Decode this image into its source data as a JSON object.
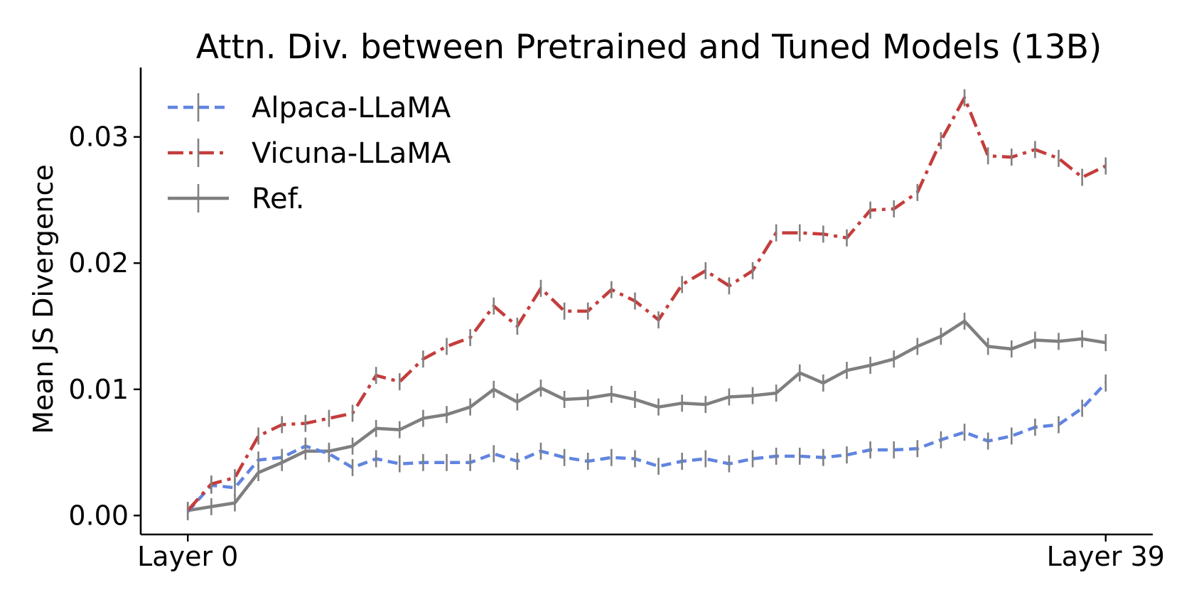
{
  "chart_data": {
    "type": "line",
    "title": "Attn. Div. between Pretrained and Tuned Models (13B)",
    "xlabel": "",
    "ylabel": "Mean JS Divergence",
    "x_ticks": [
      {
        "x": 0,
        "label": "Layer 0"
      },
      {
        "x": 39,
        "label": "Layer 39"
      }
    ],
    "y_ticks": [
      "0.00",
      "0.01",
      "0.02",
      "0.03"
    ],
    "xlim": [
      -2,
      41
    ],
    "ylim": [
      -0.0015,
      0.0355
    ],
    "grid": false,
    "legend_position": "top-left",
    "x": [
      0,
      1,
      2,
      3,
      4,
      5,
      6,
      7,
      8,
      9,
      10,
      11,
      12,
      13,
      14,
      15,
      16,
      17,
      18,
      19,
      20,
      21,
      22,
      23,
      24,
      25,
      26,
      27,
      28,
      29,
      30,
      31,
      32,
      33,
      34,
      35,
      36,
      37,
      38,
      39
    ],
    "series": [
      {
        "name": "Alpaca-LLaMA",
        "color": "#6184e0",
        "style": "dashed",
        "values": [
          0.0003,
          0.0024,
          0.0022,
          0.0044,
          0.0046,
          0.0055,
          0.0049,
          0.0038,
          0.0045,
          0.0041,
          0.0042,
          0.0042,
          0.0042,
          0.0049,
          0.0043,
          0.0051,
          0.0046,
          0.0043,
          0.0046,
          0.0045,
          0.0039,
          0.0043,
          0.0045,
          0.0041,
          0.0045,
          0.0047,
          0.0047,
          0.0046,
          0.0048,
          0.0052,
          0.0052,
          0.0053,
          0.006,
          0.0066,
          0.0059,
          0.0063,
          0.007,
          0.0072,
          0.0085,
          0.0105
        ]
      },
      {
        "name": "Vicuna-LLaMA",
        "color": "#c43d3c",
        "style": "dashdot",
        "values": [
          0.0004,
          0.0025,
          0.003,
          0.0063,
          0.0072,
          0.0073,
          0.0077,
          0.0081,
          0.0111,
          0.0106,
          0.0124,
          0.0134,
          0.0141,
          0.0166,
          0.015,
          0.018,
          0.0162,
          0.0162,
          0.0179,
          0.017,
          0.0155,
          0.0183,
          0.0194,
          0.0182,
          0.0194,
          0.0224,
          0.0224,
          0.0223,
          0.022,
          0.0242,
          0.0243,
          0.0256,
          0.0297,
          0.0331,
          0.0285,
          0.0284,
          0.029,
          0.0283,
          0.0268,
          0.0277
        ]
      },
      {
        "name": "Ref.",
        "color": "#7f7f7f",
        "style": "solid",
        "values": [
          0.0004,
          0.0007,
          0.001,
          0.0034,
          0.0042,
          0.0051,
          0.0051,
          0.0055,
          0.0069,
          0.0068,
          0.0077,
          0.008,
          0.0086,
          0.01,
          0.009,
          0.0101,
          0.0092,
          0.0093,
          0.0096,
          0.0092,
          0.0086,
          0.0089,
          0.0088,
          0.0094,
          0.0095,
          0.0097,
          0.0113,
          0.0105,
          0.0115,
          0.0119,
          0.0124,
          0.0134,
          0.0142,
          0.0154,
          0.0134,
          0.0132,
          0.0139,
          0.0138,
          0.014,
          0.0137
        ]
      }
    ]
  }
}
